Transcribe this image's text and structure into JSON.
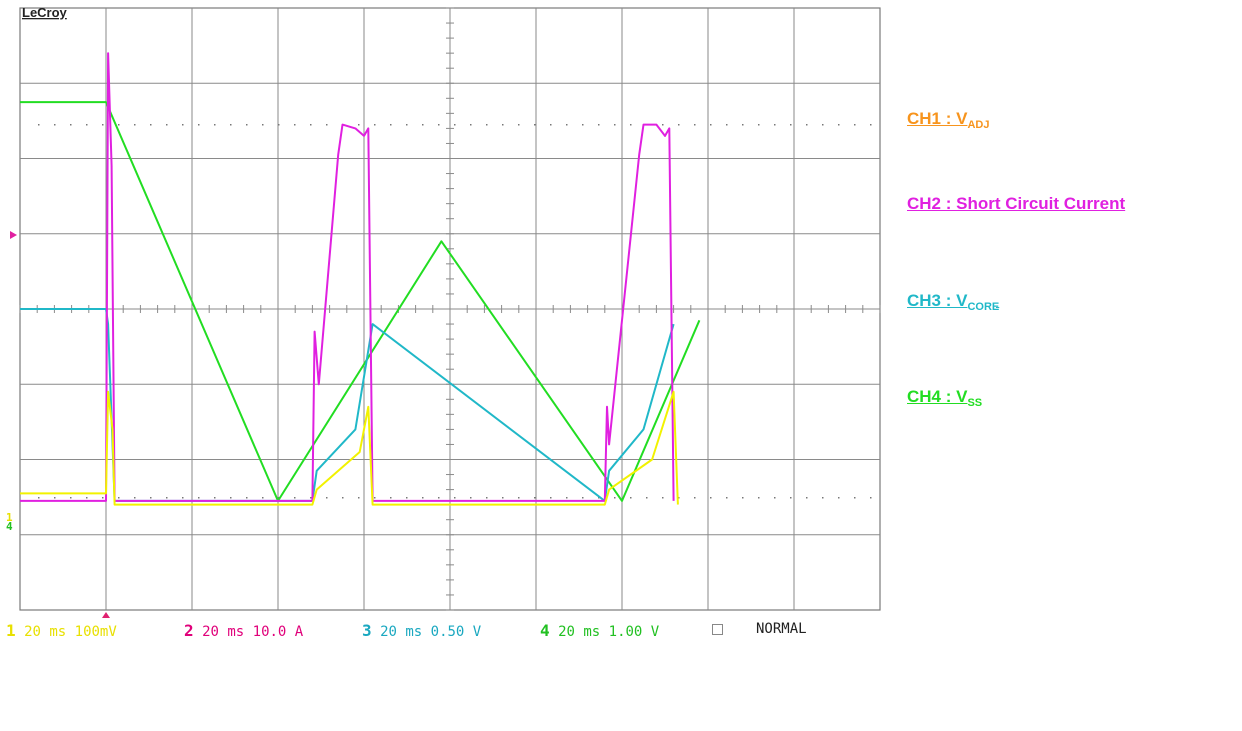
{
  "scope": {
    "brand": "LeCroy",
    "mode": "NORMAL"
  },
  "legend": [
    {
      "label": "CH1 : V",
      "sub": "ADJ",
      "color": "#f7941d"
    },
    {
      "label": "CH2 : Short Circuit Current",
      "sub": "",
      "color": "#e020e0"
    },
    {
      "label": "CH3 : V",
      "sub": "CORE",
      "color": "#20b8c8"
    },
    {
      "label": "CH4 : V",
      "sub": "SS",
      "color": "#22dd22"
    }
  ],
  "footer": [
    {
      "num": "1",
      "text": " 20 ms 100mV",
      "color": "#e8e000"
    },
    {
      "num": "2",
      "text": " 20 ms 10.0 A",
      "color": "#e0007a"
    },
    {
      "num": "3",
      "text": " 20 ms 0.50 V",
      "color": "#1aa8c0"
    },
    {
      "num": "4",
      "text": " 20 ms 1.00 V",
      "color": "#22c022"
    }
  ],
  "chart_data": {
    "type": "line",
    "x_unit": "ms",
    "xlim": [
      0,
      200
    ],
    "ylim": [
      -4,
      4
    ],
    "grid": true,
    "series": [
      {
        "name": "CH4 : V SS",
        "color": "#22dd22",
        "x": [
          0,
          20,
          60,
          98,
          140,
          158
        ],
        "y": [
          2.75,
          2.75,
          -2.55,
          0.9,
          -2.55,
          -0.15
        ]
      },
      {
        "name": "CH3 : V CORE",
        "color": "#20b8c8",
        "x": [
          0,
          20,
          20.5,
          22,
          68,
          69,
          78,
          82,
          136,
          137,
          145,
          152
        ],
        "y": [
          0,
          0,
          -0.2,
          -2.55,
          -2.55,
          -2.15,
          -1.6,
          -0.2,
          -2.55,
          -2.15,
          -1.6,
          -0.2
        ]
      },
      {
        "name": "CH2 : Short Circuit Current",
        "color": "#e020e0",
        "x": [
          0,
          20,
          20.5,
          21.3,
          22,
          68,
          68.5,
          69.5,
          74,
          75,
          78,
          80,
          81,
          82,
          136,
          136.5,
          137,
          144,
          145,
          148,
          150,
          151,
          152
        ],
        "y": [
          -2.55,
          -2.55,
          3.4,
          1.9,
          -2.55,
          -2.55,
          -0.3,
          -1.0,
          2.05,
          2.45,
          2.4,
          2.3,
          2.4,
          -2.55,
          -2.55,
          -1.3,
          -1.8,
          2.05,
          2.45,
          2.45,
          2.3,
          2.4,
          -2.55
        ]
      },
      {
        "name": "CH1 : V ADJ",
        "color": "#f2f200",
        "x": [
          0,
          20,
          20.5,
          21.5,
          22,
          68,
          69,
          79,
          81,
          82,
          136,
          137,
          147,
          152,
          153
        ],
        "y": [
          -2.45,
          -2.45,
          -1.1,
          -1.6,
          -2.6,
          -2.6,
          -2.4,
          -1.9,
          -1.3,
          -2.6,
          -2.6,
          -2.4,
          -2.0,
          -1.1,
          -2.6
        ]
      }
    ]
  }
}
